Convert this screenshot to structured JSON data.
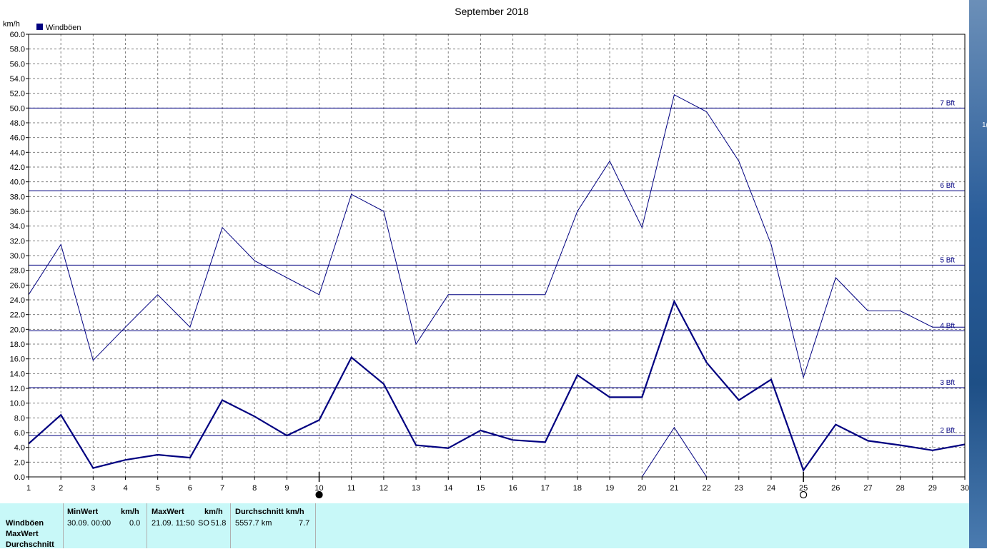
{
  "chart_data": {
    "type": "line",
    "title": "September 2018",
    "ylabel": "km/h",
    "x": [
      1,
      2,
      3,
      4,
      5,
      6,
      7,
      8,
      9,
      10,
      11,
      12,
      13,
      14,
      15,
      16,
      17,
      18,
      19,
      20,
      21,
      22,
      23,
      24,
      25,
      26,
      27,
      28,
      29,
      30
    ],
    "xlim": [
      1,
      30
    ],
    "ylim": [
      0,
      60
    ],
    "y_tick_step": 2,
    "grid": true,
    "legend": {
      "placement": "top-left",
      "entries": [
        {
          "label": "Windböen",
          "color": "#000080"
        }
      ]
    },
    "series": [
      {
        "name": "Windböen",
        "style": "thin",
        "values": [
          24.7,
          31.5,
          15.8,
          20.3,
          24.7,
          20.3,
          33.8,
          29.3,
          27.0,
          24.7,
          38.3,
          36.0,
          18.0,
          24.7,
          24.7,
          24.7,
          24.7,
          36.0,
          42.8,
          33.8,
          51.8,
          49.5,
          42.8,
          31.5,
          13.5,
          27.0,
          22.5,
          22.5,
          20.3,
          20.3
        ]
      },
      {
        "name": "",
        "style": "thick",
        "values": [
          4.5,
          8.4,
          1.2,
          2.3,
          3.0,
          2.6,
          10.4,
          8.2,
          5.6,
          7.7,
          16.2,
          12.6,
          4.3,
          3.9,
          6.3,
          5.0,
          4.7,
          13.8,
          10.8,
          10.8,
          23.8,
          15.5,
          10.4,
          13.2,
          0.9,
          7.1,
          4.9,
          4.3,
          3.6,
          4.4
        ]
      },
      {
        "name": "",
        "style": "thin",
        "x": [
          20,
          21,
          22
        ],
        "values": [
          0.0,
          6.7,
          0.0
        ]
      }
    ],
    "reference_lines": [
      {
        "label": "2 Bft",
        "value": 5.6
      },
      {
        "label": "3 Bft",
        "value": 12.1
      },
      {
        "label": "4 Bft",
        "value": 19.8
      },
      {
        "label": "5 Bft",
        "value": 28.7
      },
      {
        "label": "6 Bft",
        "value": 38.8
      },
      {
        "label": "7 Bft",
        "value": 50.0
      }
    ],
    "moon_markers": [
      {
        "day": 10,
        "phase": "new-moon"
      },
      {
        "day": 25,
        "phase": "full-moon"
      }
    ],
    "colors": {
      "series": "#000080",
      "grid": "#808080",
      "stats_background": "#c8f8f8"
    }
  },
  "stats_table": {
    "row_labels": [
      "Windböen",
      "MaxWert",
      "Durchschnitt"
    ],
    "min": {
      "header": "MinWert",
      "unit": "km/h",
      "datetime": "30.09.  00:00",
      "value": "0.0"
    },
    "max": {
      "header": "MaxWert",
      "unit": "km/h",
      "datetime": "21.09.  11:50",
      "direction": "SO",
      "value": "51.8"
    },
    "avg": {
      "header": "Durchschnitt km/h",
      "distance": "5557.7 km",
      "value": "7.7"
    }
  }
}
